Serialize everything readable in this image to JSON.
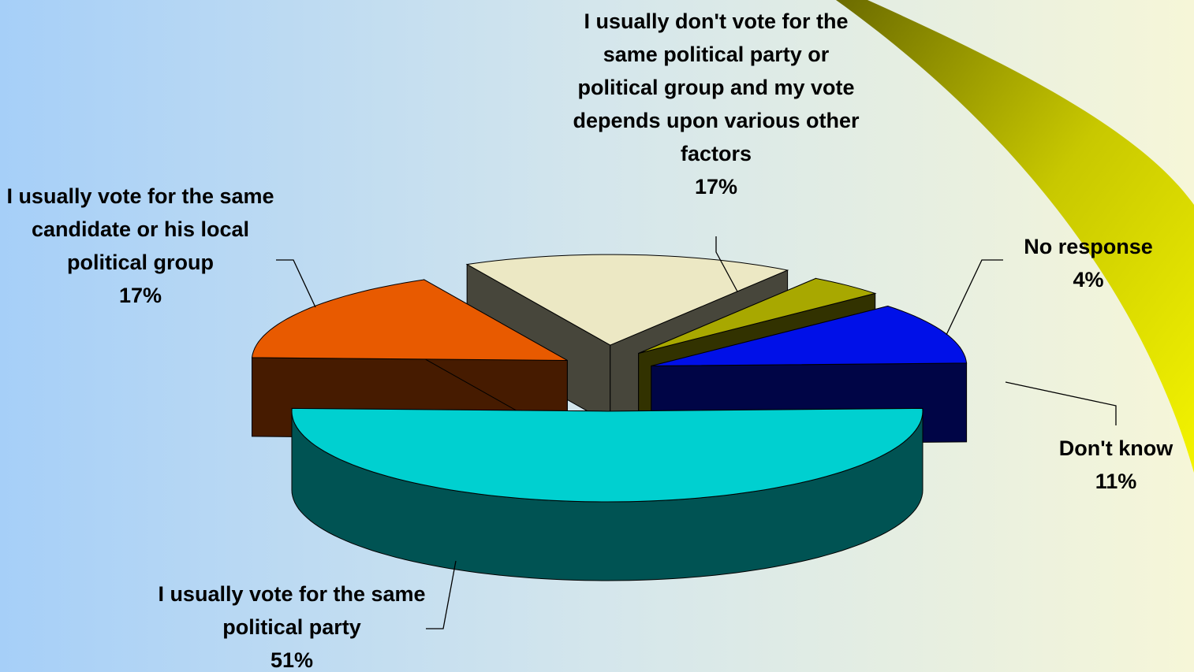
{
  "chart_data": {
    "type": "pie",
    "categories": [
      "I usually vote for the same political party",
      "I usually vote for the same candidate or his local political group",
      "I usually don't vote for the same political party or political group and my vote depends upon various other factors",
      "No response",
      "Don't know"
    ],
    "values": [
      51,
      17,
      17,
      4,
      11
    ],
    "value_labels": [
      "51%",
      "17%",
      "17%",
      "4%",
      "11%"
    ],
    "colors": [
      "#00d0d0",
      "#e85a00",
      "#ece8c4",
      "#a8a800",
      "#0010e8"
    ]
  }
}
